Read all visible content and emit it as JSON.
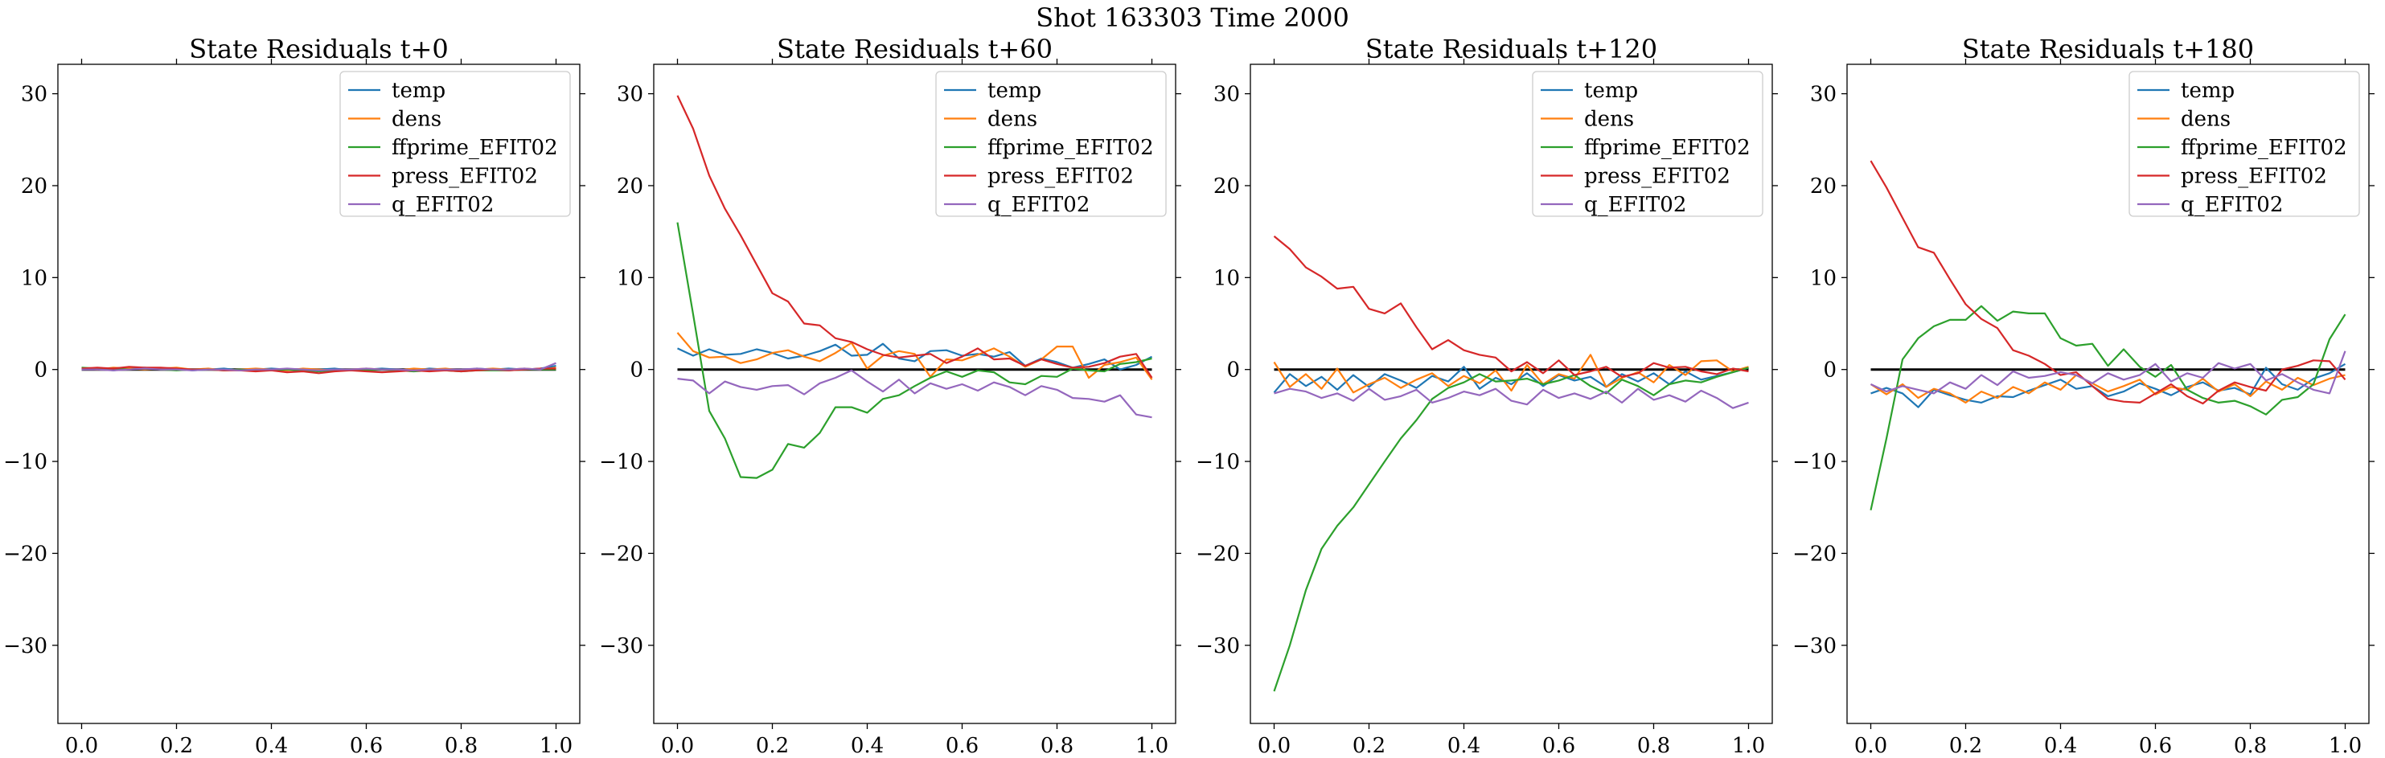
{
  "figure": {
    "suptitle": "Shot 163303   Time 2000"
  },
  "chart_data": [
    {
      "type": "line",
      "title": "State Residuals t+0",
      "xlim": [
        -0.05,
        1.05
      ],
      "ylim": [
        -38.5,
        33.2
      ],
      "xticks": [
        0.0,
        0.2,
        0.4,
        0.6,
        0.8,
        1.0
      ],
      "xtick_labels": [
        "0.0",
        "0.2",
        "0.4",
        "0.6",
        "0.8",
        "1.0"
      ],
      "yticks": [
        -30,
        -20,
        -10,
        0,
        10,
        20,
        30
      ],
      "ytick_labels": [
        "−30",
        "−20",
        "−10",
        "0",
        "10",
        "20",
        "30"
      ],
      "legend_position": "top-right",
      "reference_line": {
        "y": 0,
        "color": "#000000"
      },
      "x": [
        0.0,
        0.033,
        0.067,
        0.1,
        0.133,
        0.167,
        0.2,
        0.233,
        0.267,
        0.3,
        0.333,
        0.367,
        0.4,
        0.433,
        0.467,
        0.5,
        0.533,
        0.567,
        0.6,
        0.633,
        0.667,
        0.7,
        0.733,
        0.767,
        0.8,
        0.833,
        0.867,
        0.9,
        0.933,
        0.967,
        1.0
      ],
      "series": [
        {
          "name": "temp",
          "color": "#1f77b4",
          "values": [
            0.0,
            0.1,
            -0.1,
            0.1,
            0.2,
            0.0,
            0.1,
            -0.1,
            0.0,
            0.1,
            -0.1,
            0.0,
            0.1,
            0.0,
            -0.1,
            0.0,
            0.1,
            -0.1,
            0.0,
            0.1,
            0.0,
            -0.1,
            0.1,
            0.0,
            -0.1,
            0.1,
            0.0,
            0.1,
            0.0,
            0.1,
            0.4
          ]
        },
        {
          "name": "dens",
          "color": "#ff7f0e",
          "values": [
            0.1,
            0.0,
            0.2,
            0.1,
            0.0,
            0.1,
            0.2,
            0.0,
            0.1,
            -0.1,
            0.0,
            0.1,
            0.0,
            -0.1,
            0.1,
            0.0,
            -0.1,
            0.0,
            0.1,
            0.0,
            -0.1,
            0.1,
            0.0,
            0.1,
            -0.1,
            0.0,
            0.1,
            0.0,
            0.1,
            0.0,
            0.2
          ]
        },
        {
          "name": "ffprime_EFIT02",
          "color": "#2ca02c",
          "values": [
            0.2,
            0.1,
            0.1,
            0.0,
            0.1,
            0.0,
            -0.1,
            0.0,
            0.0,
            -0.1,
            0.0,
            -0.1,
            -0.1,
            0.0,
            -0.1,
            -0.2,
            -0.1,
            0.0,
            -0.1,
            0.0,
            -0.1,
            -0.2,
            -0.1,
            -0.1,
            -0.2,
            -0.1,
            -0.1,
            -0.1,
            0.0,
            0.0,
            0.0
          ]
        },
        {
          "name": "press_EFIT02",
          "color": "#d62728",
          "values": [
            0.1,
            0.2,
            0.1,
            0.3,
            0.2,
            0.2,
            0.1,
            0.0,
            0.0,
            -0.1,
            -0.1,
            -0.2,
            -0.1,
            -0.3,
            -0.2,
            -0.4,
            -0.2,
            -0.1,
            -0.2,
            -0.3,
            -0.2,
            -0.1,
            -0.2,
            -0.1,
            -0.2,
            -0.1,
            0.0,
            -0.1,
            0.0,
            0.1,
            0.1
          ]
        },
        {
          "name": "q_EFIT02",
          "color": "#9467bd",
          "values": [
            0.0,
            0.0,
            -0.1,
            0.0,
            0.1,
            0.0,
            0.0,
            -0.1,
            0.0,
            0.0,
            -0.1,
            0.0,
            0.0,
            0.1,
            0.0,
            -0.1,
            0.0,
            0.0,
            0.1,
            0.0,
            0.0,
            -0.1,
            0.0,
            0.0,
            0.0,
            0.1,
            0.0,
            0.0,
            0.1,
            0.0,
            0.7
          ]
        }
      ]
    },
    {
      "type": "line",
      "title": "State Residuals t+60",
      "xlim": [
        -0.05,
        1.05
      ],
      "ylim": [
        -38.5,
        33.2
      ],
      "xticks": [
        0.0,
        0.2,
        0.4,
        0.6,
        0.8,
        1.0
      ],
      "xtick_labels": [
        "0.0",
        "0.2",
        "0.4",
        "0.6",
        "0.8",
        "1.0"
      ],
      "yticks": [
        -30,
        -20,
        -10,
        0,
        10,
        20,
        30
      ],
      "ytick_labels": [
        "−30",
        "−20",
        "−10",
        "0",
        "10",
        "20",
        "30"
      ],
      "legend_position": "top-right",
      "reference_line": {
        "y": 0,
        "color": "#000000"
      },
      "x": [
        0.0,
        0.033,
        0.067,
        0.1,
        0.133,
        0.167,
        0.2,
        0.233,
        0.267,
        0.3,
        0.333,
        0.367,
        0.4,
        0.433,
        0.467,
        0.5,
        0.533,
        0.567,
        0.6,
        0.633,
        0.667,
        0.7,
        0.733,
        0.767,
        0.8,
        0.833,
        0.867,
        0.9,
        0.933,
        0.967,
        1.0
      ],
      "series": [
        {
          "name": "temp",
          "color": "#1f77b4",
          "values": [
            2.3,
            1.5,
            2.2,
            1.6,
            1.7,
            2.2,
            1.8,
            1.2,
            1.5,
            2.0,
            2.7,
            1.5,
            1.6,
            2.8,
            1.2,
            0.9,
            2.0,
            2.1,
            1.5,
            1.7,
            1.4,
            1.9,
            0.4,
            1.2,
            0.8,
            0.2,
            0.6,
            1.1,
            0.0,
            0.5,
            1.4
          ]
        },
        {
          "name": "dens",
          "color": "#ff7f0e",
          "values": [
            4.0,
            2.0,
            1.3,
            1.4,
            0.7,
            1.1,
            1.8,
            2.1,
            1.4,
            0.9,
            1.8,
            2.9,
            0.1,
            1.5,
            2.0,
            1.7,
            -0.8,
            1.1,
            1.0,
            1.6,
            2.3,
            1.4,
            0.3,
            1.1,
            2.5,
            2.5,
            -0.9,
            0.5,
            0.8,
            1.3,
            -1.1
          ]
        },
        {
          "name": "ffprime_EFIT02",
          "color": "#2ca02c",
          "values": [
            16.0,
            6.0,
            -4.5,
            -7.5,
            -11.7,
            -11.8,
            -10.9,
            -8.1,
            -8.5,
            -6.9,
            -4.1,
            -4.1,
            -4.7,
            -3.2,
            -2.8,
            -1.8,
            -0.9,
            -0.2,
            -0.8,
            -0.1,
            -0.3,
            -1.4,
            -1.6,
            -0.7,
            -0.8,
            0.1,
            -0.1,
            -0.2,
            0.6,
            0.8,
            1.2
          ]
        },
        {
          "name": "press_EFIT02",
          "color": "#d62728",
          "values": [
            29.8,
            26.2,
            21.1,
            17.5,
            14.6,
            11.4,
            8.3,
            7.4,
            5.0,
            4.8,
            3.4,
            3.0,
            2.2,
            1.6,
            1.3,
            1.5,
            1.7,
            0.7,
            1.4,
            2.3,
            1.1,
            1.2,
            0.4,
            1.1,
            0.6,
            0.2,
            0.3,
            0.7,
            1.4,
            1.7,
            -0.9
          ]
        },
        {
          "name": "q_EFIT02",
          "color": "#9467bd",
          "values": [
            -1.0,
            -1.2,
            -2.6,
            -1.3,
            -1.9,
            -2.2,
            -1.8,
            -1.7,
            -2.7,
            -1.5,
            -0.9,
            -0.1,
            -1.3,
            -2.4,
            -1.1,
            -2.6,
            -1.5,
            -2.1,
            -1.6,
            -2.3,
            -1.4,
            -1.9,
            -2.8,
            -1.8,
            -2.2,
            -3.1,
            -3.2,
            -3.5,
            -2.8,
            -4.9,
            -5.2
          ]
        }
      ]
    },
    {
      "type": "line",
      "title": "State Residuals t+120",
      "xlim": [
        -0.05,
        1.05
      ],
      "ylim": [
        -38.5,
        33.2
      ],
      "xticks": [
        0.0,
        0.2,
        0.4,
        0.6,
        0.8,
        1.0
      ],
      "xtick_labels": [
        "0.0",
        "0.2",
        "0.4",
        "0.6",
        "0.8",
        "1.0"
      ],
      "yticks": [
        -30,
        -20,
        -10,
        0,
        10,
        20,
        30
      ],
      "ytick_labels": [
        "−30",
        "−20",
        "−10",
        "0",
        "10",
        "20",
        "30"
      ],
      "legend_position": "top-right",
      "reference_line": {
        "y": 0,
        "color": "#000000"
      },
      "x": [
        0.0,
        0.033,
        0.067,
        0.1,
        0.133,
        0.167,
        0.2,
        0.233,
        0.267,
        0.3,
        0.333,
        0.367,
        0.4,
        0.433,
        0.467,
        0.5,
        0.533,
        0.567,
        0.6,
        0.633,
        0.667,
        0.7,
        0.733,
        0.767,
        0.8,
        0.833,
        0.867,
        0.9,
        0.933,
        0.967,
        1.0
      ],
      "series": [
        {
          "name": "temp",
          "color": "#1f77b4",
          "values": [
            -2.5,
            -0.5,
            -1.8,
            -0.8,
            -2.2,
            -0.6,
            -1.9,
            -0.5,
            -1.2,
            -2.0,
            -0.7,
            -1.3,
            0.3,
            -2.1,
            -0.9,
            -1.6,
            -0.4,
            -1.8,
            -0.6,
            -1.2,
            -0.8,
            -1.9,
            -0.5,
            -1.3,
            -0.4,
            -1.6,
            -0.2,
            -1.1,
            -0.7,
            -0.3,
            0.2
          ]
        },
        {
          "name": "dens",
          "color": "#ff7f0e",
          "values": [
            0.8,
            -1.9,
            -0.5,
            -2.1,
            0.1,
            -2.5,
            -1.6,
            -0.9,
            -2.0,
            -1.1,
            -0.4,
            -1.8,
            -0.7,
            -1.5,
            -0.1,
            -2.3,
            0.5,
            -1.6,
            -0.5,
            -1.0,
            1.6,
            -1.9,
            -0.9,
            -0.3,
            -1.4,
            0.5,
            -0.6,
            0.9,
            1.0,
            -0.2,
            0.3
          ]
        },
        {
          "name": "ffprime_EFIT02",
          "color": "#2ca02c",
          "values": [
            -35.0,
            -30.0,
            -24.0,
            -19.5,
            -17.0,
            -15.0,
            -12.5,
            -10.0,
            -7.5,
            -5.5,
            -3.2,
            -2.0,
            -1.4,
            -0.5,
            -1.3,
            -1.2,
            -1.0,
            -1.6,
            -1.2,
            -0.6,
            -1.8,
            -2.6,
            -1.1,
            -1.8,
            -2.8,
            -1.6,
            -1.2,
            -1.4,
            -0.8,
            -0.3,
            0.2
          ]
        },
        {
          "name": "press_EFIT02",
          "color": "#d62728",
          "values": [
            14.5,
            13.1,
            11.1,
            10.1,
            8.8,
            9.0,
            6.6,
            6.1,
            7.2,
            4.6,
            2.2,
            3.2,
            2.1,
            1.6,
            1.3,
            -0.2,
            0.8,
            -0.4,
            1.0,
            -0.6,
            -0.2,
            0.3,
            -0.8,
            -0.4,
            0.7,
            0.2,
            0.3,
            -0.2,
            -0.5,
            0.1,
            -0.2
          ]
        },
        {
          "name": "q_EFIT02",
          "color": "#9467bd",
          "values": [
            -2.6,
            -2.1,
            -2.4,
            -3.1,
            -2.6,
            -3.4,
            -2.1,
            -3.3,
            -2.9,
            -2.2,
            -3.6,
            -3.1,
            -2.4,
            -2.8,
            -2.1,
            -3.4,
            -3.8,
            -2.2,
            -3.1,
            -2.6,
            -3.2,
            -2.4,
            -3.6,
            -2.1,
            -3.3,
            -2.8,
            -3.5,
            -2.3,
            -3.1,
            -4.2,
            -3.6
          ]
        }
      ]
    },
    {
      "type": "line",
      "title": "State Residuals t+180",
      "xlim": [
        -0.05,
        1.05
      ],
      "ylim": [
        -38.5,
        33.2
      ],
      "xticks": [
        0.0,
        0.2,
        0.4,
        0.6,
        0.8,
        1.0
      ],
      "xtick_labels": [
        "0.0",
        "0.2",
        "0.4",
        "0.6",
        "0.8",
        "1.0"
      ],
      "yticks": [
        -30,
        -20,
        -10,
        0,
        10,
        20,
        30
      ],
      "ytick_labels": [
        "−30",
        "−20",
        "−10",
        "0",
        "10",
        "20",
        "30"
      ],
      "legend_position": "top-right",
      "reference_line": {
        "y": 0,
        "color": "#000000"
      },
      "x": [
        0.0,
        0.033,
        0.067,
        0.1,
        0.133,
        0.167,
        0.2,
        0.233,
        0.267,
        0.3,
        0.333,
        0.367,
        0.4,
        0.433,
        0.467,
        0.5,
        0.533,
        0.567,
        0.6,
        0.633,
        0.667,
        0.7,
        0.733,
        0.767,
        0.8,
        0.833,
        0.867,
        0.9,
        0.933,
        0.967,
        1.0
      ],
      "series": [
        {
          "name": "temp",
          "color": "#1f77b4",
          "values": [
            -2.6,
            -2.0,
            -2.6,
            -4.1,
            -2.2,
            -2.8,
            -3.3,
            -3.6,
            -2.9,
            -3.0,
            -2.3,
            -1.7,
            -1.1,
            -2.1,
            -1.8,
            -2.9,
            -2.4,
            -1.5,
            -2.1,
            -2.8,
            -1.9,
            -1.4,
            -2.3,
            -2.0,
            -2.7,
            0.2,
            -1.6,
            -2.2,
            -1.0,
            -0.4,
            0.6
          ]
        },
        {
          "name": "dens",
          "color": "#ff7f0e",
          "values": [
            -1.6,
            -2.7,
            -1.6,
            -3.1,
            -2.1,
            -2.6,
            -3.6,
            -2.4,
            -3.1,
            -1.9,
            -2.6,
            -1.4,
            -2.2,
            -0.6,
            -1.5,
            -2.4,
            -1.8,
            -1.1,
            -2.7,
            -1.9,
            -2.2,
            -1.0,
            -2.4,
            -1.6,
            -2.9,
            -1.3,
            -2.2,
            -0.9,
            -1.7,
            -1.0,
            -0.6
          ]
        },
        {
          "name": "ffprime_EFIT02",
          "color": "#2ca02c",
          "values": [
            -15.3,
            -7.5,
            1.1,
            3.4,
            4.7,
            5.4,
            5.4,
            6.9,
            5.3,
            6.3,
            6.1,
            6.1,
            3.4,
            2.6,
            2.8,
            0.4,
            2.2,
            0.3,
            -0.8,
            0.5,
            -2.2,
            -3.1,
            -3.6,
            -3.4,
            -4.0,
            -4.9,
            -3.3,
            -3.0,
            -1.6,
            3.3,
            6.0
          ]
        },
        {
          "name": "press_EFIT02",
          "color": "#d62728",
          "values": [
            22.7,
            19.8,
            16.5,
            13.3,
            12.7,
            9.8,
            7.1,
            5.5,
            4.5,
            2.1,
            1.5,
            0.6,
            -0.6,
            -0.3,
            -1.8,
            -3.2,
            -3.5,
            -3.6,
            -2.6,
            -1.6,
            -2.9,
            -3.7,
            -2.3,
            -1.4,
            -1.9,
            -2.3,
            0.0,
            0.4,
            1.0,
            0.9,
            -1.1
          ]
        },
        {
          "name": "q_EFIT02",
          "color": "#9467bd",
          "values": [
            -1.6,
            -2.4,
            -1.8,
            -2.2,
            -2.6,
            -1.4,
            -2.1,
            -0.6,
            -1.7,
            -0.2,
            -0.9,
            -0.7,
            -0.3,
            -0.6,
            -1.5,
            -0.4,
            -1.1,
            -0.6,
            0.6,
            -1.3,
            -0.4,
            -0.9,
            0.7,
            0.1,
            0.6,
            -1.2,
            -0.5,
            -1.4,
            -2.2,
            -2.6,
            2.0
          ]
        }
      ]
    }
  ]
}
